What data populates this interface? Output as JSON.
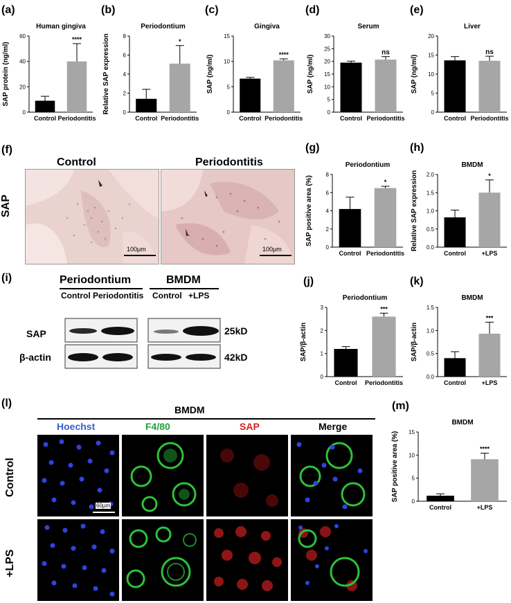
{
  "panel_labels": {
    "a": "(a)",
    "b": "(b)",
    "c": "(c)",
    "d": "(d)",
    "e": "(e)",
    "f": "(f)",
    "g": "(g)",
    "h": "(h)",
    "i": "(i)",
    "j": "(j)",
    "k": "(k)",
    "l": "(l)",
    "m": "(m)"
  },
  "histology": {
    "control_title": "Control",
    "periodontitis_title": "Periodontitis",
    "row_label": "SAP",
    "scale_bar": "100μm"
  },
  "western": {
    "group_periodontium": "Periodontium",
    "group_bmdm": "BMDM",
    "lanes": [
      "Control",
      "Periodontitis",
      "Control",
      "+LPS"
    ],
    "row_sap": "SAP",
    "row_actin": "β-actin",
    "size_sap": "25kD",
    "size_actin": "42kD"
  },
  "immunofluorescence": {
    "title": "BMDM",
    "channels": [
      "Hoechst",
      "F4/80",
      "SAP",
      "Merge"
    ],
    "rows": [
      "Control",
      "+LPS"
    ],
    "scale_bar": "60μm",
    "channel_colors": [
      "#3a5fc8",
      "#22a03a",
      "#d42020",
      "#000000"
    ]
  },
  "colors": {
    "control_bar": "#000000",
    "treated_bar": "#a6a6a6"
  },
  "chart_data": [
    {
      "id": "a",
      "type": "bar",
      "title": "Human gingiva",
      "ylabel": "SAP protein (ng/ml)",
      "categories": [
        "Control",
        "Periodontitis"
      ],
      "values": [
        9,
        40
      ],
      "errors": [
        3.5,
        14
      ],
      "ylim": [
        0,
        60
      ],
      "yticks": [
        0,
        20,
        40,
        60
      ],
      "significance": "****"
    },
    {
      "id": "b",
      "type": "bar",
      "title": "Periodontium",
      "ylabel": "Relative SAP expression",
      "categories": [
        "Control",
        "Periodontitis"
      ],
      "values": [
        1.4,
        5.1
      ],
      "errors": [
        1.0,
        1.9
      ],
      "ylim": [
        0,
        8
      ],
      "yticks": [
        0,
        2,
        4,
        6,
        8
      ],
      "significance": "*"
    },
    {
      "id": "c",
      "type": "bar",
      "title": "Gingiva",
      "ylabel": "SAP (ng/ml)",
      "categories": [
        "Control",
        "Periodontitis"
      ],
      "values": [
        6.6,
        10.2
      ],
      "errors": [
        0.25,
        0.3
      ],
      "ylim": [
        0,
        15
      ],
      "yticks": [
        0,
        5,
        10,
        15
      ],
      "significance": "****"
    },
    {
      "id": "d",
      "type": "bar",
      "title": "Serum",
      "ylabel": "SAP (ng/ml)",
      "categories": [
        "Control",
        "Periodontitis"
      ],
      "values": [
        19.5,
        20.7
      ],
      "errors": [
        0.6,
        1.2
      ],
      "ylim": [
        0,
        30
      ],
      "yticks": [
        0,
        5,
        10,
        15,
        20,
        25,
        30
      ],
      "significance": "ns"
    },
    {
      "id": "e",
      "type": "bar",
      "title": "Liver",
      "ylabel": "SAP (ng/ml)",
      "categories": [
        "Control",
        "Periodontitis"
      ],
      "values": [
        13.6,
        13.5
      ],
      "errors": [
        1.0,
        1.2
      ],
      "ylim": [
        0,
        20
      ],
      "yticks": [
        0,
        5,
        10,
        15,
        20
      ],
      "significance": "ns"
    },
    {
      "id": "g",
      "type": "bar",
      "title": "Periodontium",
      "ylabel": "SAP positive area (%)",
      "categories": [
        "Control",
        "Periodontitis"
      ],
      "values": [
        4.2,
        6.5
      ],
      "errors": [
        1.3,
        0.2
      ],
      "ylim": [
        0,
        8
      ],
      "yticks": [
        0,
        2,
        4,
        6,
        8
      ],
      "significance": "*"
    },
    {
      "id": "h",
      "type": "bar",
      "title": "BMDM",
      "ylabel": "Relative SAP expression",
      "categories": [
        "Control",
        "+LPS"
      ],
      "values": [
        0.82,
        1.5
      ],
      "errors": [
        0.2,
        0.35
      ],
      "ylim": [
        0,
        2.0
      ],
      "yticks": [
        0.0,
        0.5,
        1.0,
        1.5,
        2.0
      ],
      "significance": "*"
    },
    {
      "id": "j",
      "type": "bar",
      "title": "Periodontium",
      "ylabel": "SAP/β-actin",
      "categories": [
        "Control",
        "Periodontitis"
      ],
      "values": [
        1.2,
        2.6
      ],
      "errors": [
        0.1,
        0.15
      ],
      "ylim": [
        0,
        3
      ],
      "yticks": [
        0,
        1,
        2,
        3
      ],
      "significance": "***"
    },
    {
      "id": "k",
      "type": "bar",
      "title": "BMDM",
      "ylabel": "SAP/β-actin",
      "categories": [
        "Control",
        "+LPS"
      ],
      "values": [
        0.4,
        0.93
      ],
      "errors": [
        0.14,
        0.25
      ],
      "ylim": [
        0,
        1.5
      ],
      "yticks": [
        0.0,
        0.5,
        1.0,
        1.5
      ],
      "significance": "***"
    },
    {
      "id": "m",
      "type": "bar",
      "title": "BMDM",
      "ylabel": "SAP positive area (%)",
      "categories": [
        "Control",
        "+LPS"
      ],
      "values": [
        1.2,
        9.1
      ],
      "errors": [
        0.4,
        1.3
      ],
      "ylim": [
        0,
        15
      ],
      "yticks": [
        0,
        5,
        10,
        15
      ],
      "significance": "****"
    }
  ]
}
